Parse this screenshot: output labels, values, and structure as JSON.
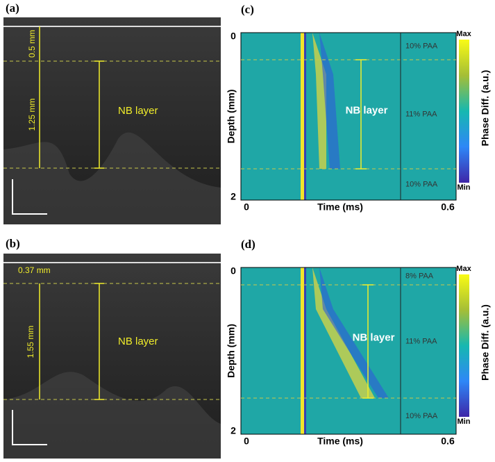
{
  "panel_a": {
    "label": "(a)",
    "top_thickness": "0.5 mm",
    "layer_thickness": "1.25 mm",
    "layer_name": "NB layer"
  },
  "panel_b": {
    "label": "(b)",
    "top_thickness": "0.37 mm",
    "layer_thickness": "1.55 mm",
    "layer_name": "NB layer"
  },
  "panel_c": {
    "label": "(c)",
    "y_label": "Depth (mm)",
    "x_label": "Time (ms)",
    "y_ticks": [
      "0",
      "2"
    ],
    "x_ticks": [
      "0",
      "0.6"
    ],
    "regions": [
      "10% PAA",
      "11% PAA",
      "10% PAA"
    ],
    "layer_name": "NB layer",
    "colorbar_max": "Max",
    "colorbar_min": "Min",
    "colorbar_label": "Phase Diff. (a.u.)"
  },
  "panel_d": {
    "label": "(d)",
    "y_label": "Depth (mm)",
    "x_label": "Time (ms)",
    "y_ticks": [
      "0",
      "2"
    ],
    "x_ticks": [
      "0",
      "0.6"
    ],
    "regions": [
      "8% PAA",
      "11% PAA",
      "10% PAA"
    ],
    "layer_name": "NB layer",
    "colorbar_max": "Max",
    "colorbar_min": "Min",
    "colorbar_label": "Phase Diff. (a.u.)"
  }
}
